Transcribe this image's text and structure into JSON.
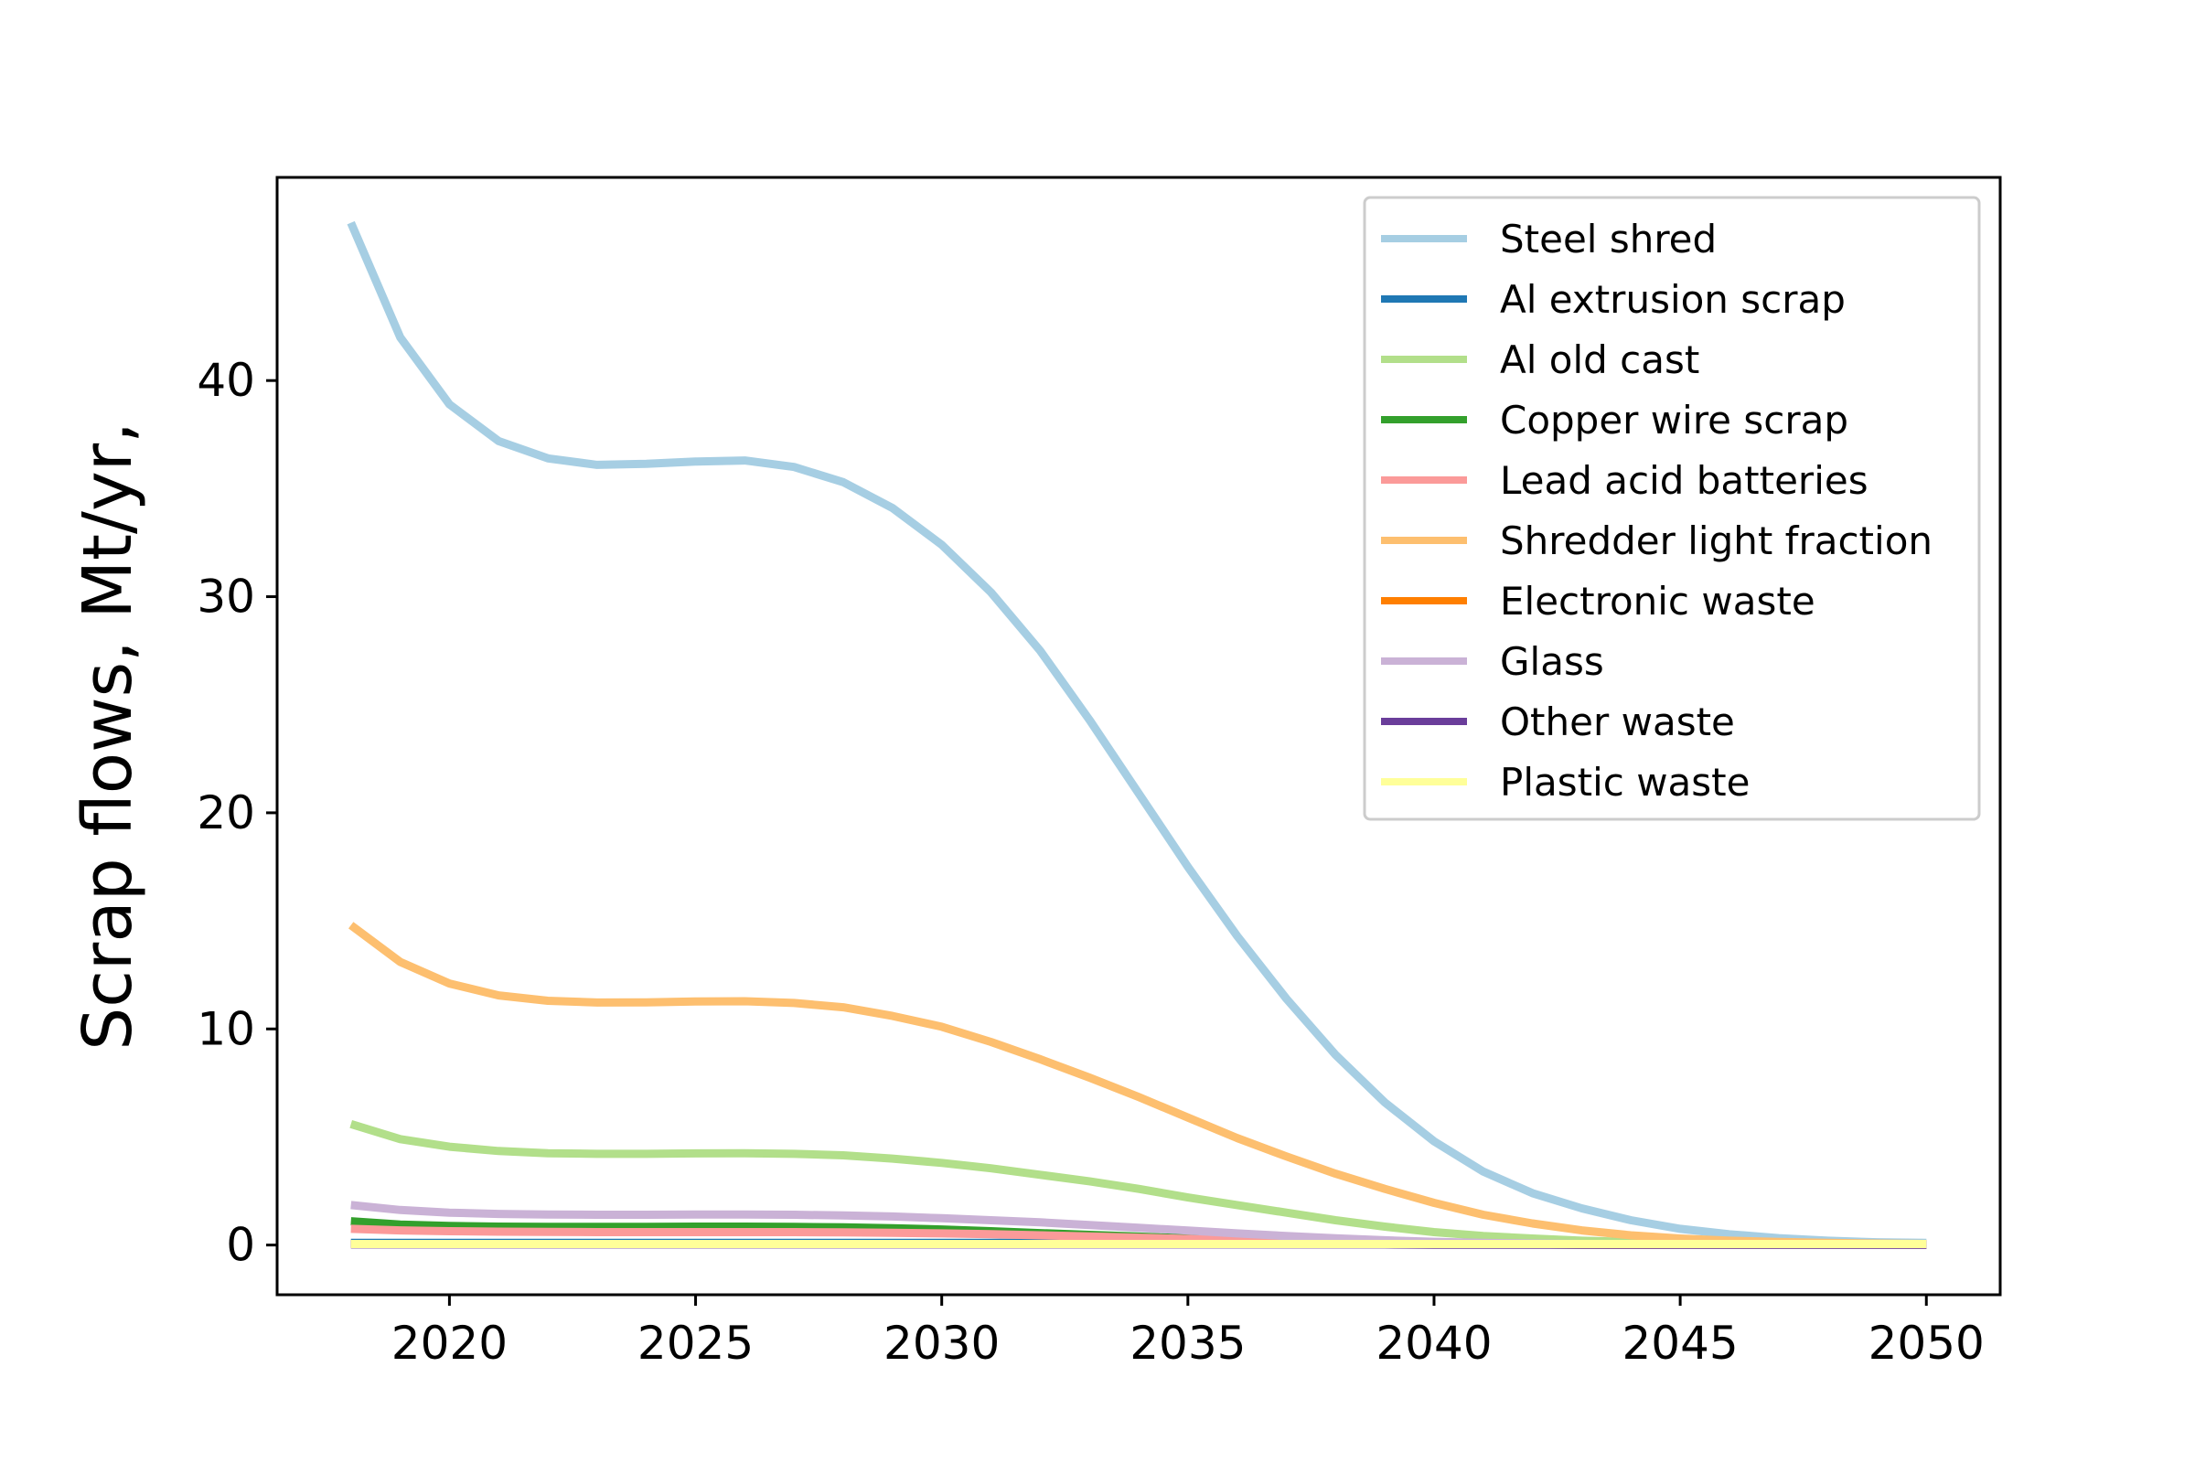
{
  "chart_data": {
    "type": "line",
    "title": "",
    "xlabel": "",
    "ylabel": "Scrap flows, Mt/yr,",
    "xlim": [
      2016.5,
      2051.5
    ],
    "ylim": [
      -2.3,
      49.4
    ],
    "x_ticks": [
      2020,
      2025,
      2030,
      2035,
      2040,
      2045,
      2050
    ],
    "y_ticks": [
      0,
      10,
      20,
      30,
      40
    ],
    "grid": false,
    "legend_position": "top-right",
    "x": [
      2018,
      2019,
      2020,
      2021,
      2022,
      2023,
      2024,
      2025,
      2026,
      2027,
      2028,
      2029,
      2030,
      2031,
      2032,
      2033,
      2034,
      2035,
      2036,
      2037,
      2038,
      2039,
      2040,
      2041,
      2042,
      2043,
      2044,
      2045,
      2046,
      2047,
      2048,
      2049,
      2050
    ],
    "series": [
      {
        "name": "Steel shred",
        "color": "#a6cee3",
        "values": [
          47.3,
          42.0,
          38.9,
          37.2,
          36.4,
          36.1,
          36.15,
          36.25,
          36.3,
          36.0,
          35.3,
          34.1,
          32.4,
          30.2,
          27.5,
          24.3,
          20.9,
          17.5,
          14.3,
          11.4,
          8.8,
          6.6,
          4.8,
          3.4,
          2.4,
          1.7,
          1.15,
          0.75,
          0.5,
          0.32,
          0.2,
          0.13,
          0.1
        ]
      },
      {
        "name": "Al extrusion scrap",
        "color": "#1f78b4",
        "values": [
          0.1,
          0.1,
          0.1,
          0.1,
          0.1,
          0.1,
          0.1,
          0.1,
          0.1,
          0.1,
          0.1,
          0.1,
          0.1,
          0.1,
          0.1,
          0.1,
          0.1,
          0.1,
          0.1,
          0.1,
          0.1,
          0.1,
          0.05,
          0.05,
          0.05,
          0.05,
          0.05,
          0.05,
          0.05,
          0.05,
          0.05,
          0.05,
          0.05
        ]
      },
      {
        "name": "Al old cast",
        "color": "#b2df8a",
        "values": [
          5.6,
          4.9,
          4.55,
          4.35,
          4.25,
          4.22,
          4.22,
          4.24,
          4.25,
          4.22,
          4.15,
          4.0,
          3.8,
          3.55,
          3.25,
          2.95,
          2.6,
          2.2,
          1.85,
          1.5,
          1.15,
          0.85,
          0.6,
          0.42,
          0.3,
          0.2,
          0.14,
          0.1,
          0.07,
          0.05,
          0.04,
          0.03,
          0.02
        ]
      },
      {
        "name": "Copper wire scrap",
        "color": "#33a02c",
        "values": [
          1.1,
          0.95,
          0.88,
          0.85,
          0.84,
          0.84,
          0.84,
          0.85,
          0.85,
          0.84,
          0.82,
          0.78,
          0.72,
          0.64,
          0.55,
          0.47,
          0.39,
          0.31,
          0.24,
          0.18,
          0.13,
          0.09,
          0.06,
          0.04,
          0.03,
          0.02,
          0.01,
          0.01,
          0.01,
          0.01,
          0.01,
          0.01,
          0.01
        ]
      },
      {
        "name": "Lead acid batteries",
        "color": "#fb9a99",
        "values": [
          0.75,
          0.68,
          0.64,
          0.62,
          0.61,
          0.6,
          0.6,
          0.6,
          0.6,
          0.6,
          0.59,
          0.57,
          0.54,
          0.5,
          0.45,
          0.4,
          0.34,
          0.28,
          0.22,
          0.17,
          0.13,
          0.09,
          0.06,
          0.04,
          0.03,
          0.02,
          0.01,
          0.01,
          0.01,
          0.01,
          0.01,
          0.01,
          0.01
        ]
      },
      {
        "name": "Shredder light fraction",
        "color": "#fdbf6f",
        "values": [
          14.8,
          13.1,
          12.1,
          11.55,
          11.3,
          11.22,
          11.23,
          11.27,
          11.28,
          11.2,
          11.0,
          10.6,
          10.1,
          9.4,
          8.6,
          7.75,
          6.85,
          5.9,
          4.95,
          4.1,
          3.3,
          2.6,
          1.95,
          1.4,
          1.0,
          0.68,
          0.45,
          0.3,
          0.2,
          0.14,
          0.1,
          0.07,
          0.05
        ]
      },
      {
        "name": "Electronic waste",
        "color": "#ff7f00",
        "values": [
          0.05,
          0.05,
          0.05,
          0.05,
          0.05,
          0.05,
          0.05,
          0.05,
          0.05,
          0.05,
          0.05,
          0.05,
          0.05,
          0.05,
          0.05,
          0.05,
          0.05,
          0.05,
          0.05,
          0.05,
          0.05,
          0.05,
          0.05,
          0.05,
          0.05,
          0.05,
          0.05,
          0.05,
          0.05,
          0.05,
          0.05,
          0.05,
          0.05
        ]
      },
      {
        "name": "Glass",
        "color": "#cab2d6",
        "values": [
          1.85,
          1.62,
          1.5,
          1.44,
          1.41,
          1.4,
          1.4,
          1.41,
          1.41,
          1.4,
          1.37,
          1.32,
          1.24,
          1.15,
          1.05,
          0.93,
          0.8,
          0.67,
          0.54,
          0.42,
          0.31,
          0.22,
          0.15,
          0.1,
          0.07,
          0.05,
          0.03,
          0.02,
          0.02,
          0.01,
          0.01,
          0.01,
          0.01
        ]
      },
      {
        "name": "Other waste",
        "color": "#6a3d9a",
        "values": [
          0.03,
          0.03,
          0.03,
          0.03,
          0.03,
          0.03,
          0.03,
          0.03,
          0.03,
          0.03,
          0.03,
          0.03,
          0.03,
          0.03,
          0.03,
          0.03,
          0.03,
          0.03,
          0.03,
          0.03,
          0.03,
          0.03,
          0.02,
          0.02,
          0.02,
          0.02,
          0.02,
          0.02,
          0.02,
          0.02,
          0.02,
          0.02,
          0.02
        ]
      },
      {
        "name": "Plastic waste",
        "color": "#ffff99",
        "values": [
          0.05,
          0.05,
          0.05,
          0.05,
          0.05,
          0.05,
          0.05,
          0.05,
          0.05,
          0.05,
          0.05,
          0.05,
          0.05,
          0.05,
          0.05,
          0.05,
          0.05,
          0.05,
          0.05,
          0.05,
          0.05,
          0.05,
          0.05,
          0.05,
          0.05,
          0.05,
          0.05,
          0.05,
          0.05,
          0.05,
          0.05,
          0.05,
          0.05
        ]
      }
    ]
  }
}
